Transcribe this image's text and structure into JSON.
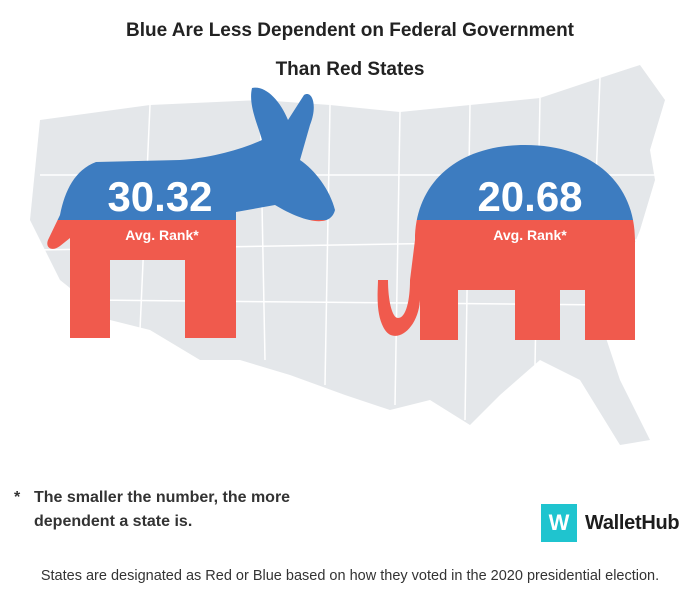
{
  "title_lines": [
    "Blue Are Less Dependent on Federal Government",
    "Than Red States"
  ],
  "chart_data": {
    "type": "bar",
    "categories": [
      "Blue States",
      "Red States"
    ],
    "values": [
      30.32,
      20.68
    ],
    "value_labels": [
      "30.32",
      "20.68"
    ],
    "metric_label": "Avg. Rank*",
    "footnote_marker": "*",
    "footnote": "The smaller the number, the more dependent a state is."
  },
  "colors": {
    "blue": "#3d7cc0",
    "red": "#f05a4d",
    "map": "#e4e7ea",
    "brand": "#1fc4cf"
  },
  "icons": {
    "blue_states": "donkey-icon",
    "red_states": "elephant-icon"
  },
  "brand": {
    "mark": "W",
    "name": "WalletHub"
  },
  "source_note": "States are designated as Red or Blue based on how they voted in the 2020 presidential election."
}
